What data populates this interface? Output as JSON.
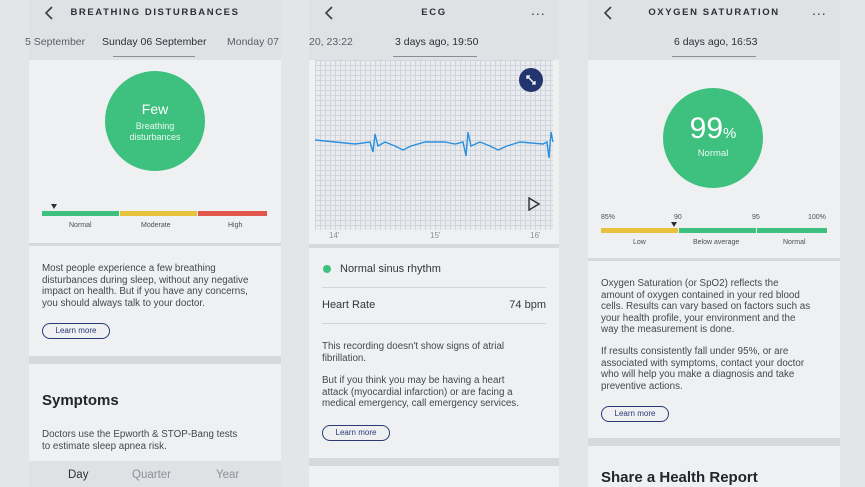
{
  "colors": {
    "green": "#3ec07f",
    "yellow": "#e8c23c",
    "red": "#e2574c",
    "navy": "#23356f",
    "ecg_line": "#2a8fe0"
  },
  "screen1": {
    "title": "BREATHING DISTURBANCES",
    "dates": [
      "5 September",
      "Sunday 06 September",
      "Monday 07"
    ],
    "score": "Few",
    "score_sub_line1": "Breathing",
    "score_sub_line2": "disturbances",
    "scale_labels": [
      "Normal",
      "Moderate",
      "High"
    ],
    "marker_level": "Normal",
    "body_lines": [
      "Most people experience a few breathing",
      "disturbances during sleep, without any negative",
      "impact on health. But if you have any concerns,",
      "you should always talk to your doctor."
    ],
    "learn_more": "Learn more",
    "symptoms_heading": "Symptoms",
    "symptoms_lines": [
      "Doctors use the Epworth & STOP-Bang tests",
      "to estimate sleep apnea risk."
    ],
    "period_tabs": [
      "Day",
      "Quarter",
      "Year"
    ]
  },
  "screen2": {
    "title": "ECG",
    "dates": [
      "20, 23:22",
      "3 days ago, 19:50"
    ],
    "time_labels": [
      "14'",
      "15'",
      "16'"
    ],
    "rhythm": "Normal sinus rhythm",
    "hr_label": "Heart Rate",
    "hr_value": "74 bpm",
    "para1_lines": [
      "This recording doesn't show signs of atrial",
      "fibrillation."
    ],
    "para2_lines": [
      "But if you think you may be having a heart",
      "attack (myocardial infarction) or are facing a",
      "medical emergency, call emergency services."
    ],
    "learn_more": "Learn more",
    "more_icon": "..."
  },
  "screen3": {
    "title": "OXYGEN SATURATION",
    "dates": [
      "6 days ago, 16:53"
    ],
    "value": "99",
    "unit": "%",
    "status": "Normal",
    "scale_ticks": [
      "85%",
      "90",
      "95",
      "100%"
    ],
    "scale_labels": [
      "Low",
      "Below average",
      "Normal"
    ],
    "para1_lines": [
      "Oxygen Saturation (or SpO2) reflects the",
      "amount of oxygen contained in your red blood",
      "cells. Results can vary based on factors such as",
      "your health profile, your environment and the",
      "way the measurement is done."
    ],
    "para2_lines": [
      "If results consistently fall under 95%, or are",
      "associated with symptoms, contact your doctor",
      "who will help you make a diagnosis and take",
      "preventive actions."
    ],
    "learn_more": "Learn more",
    "share_heading": "Share a Health Report",
    "more_icon": "..."
  }
}
